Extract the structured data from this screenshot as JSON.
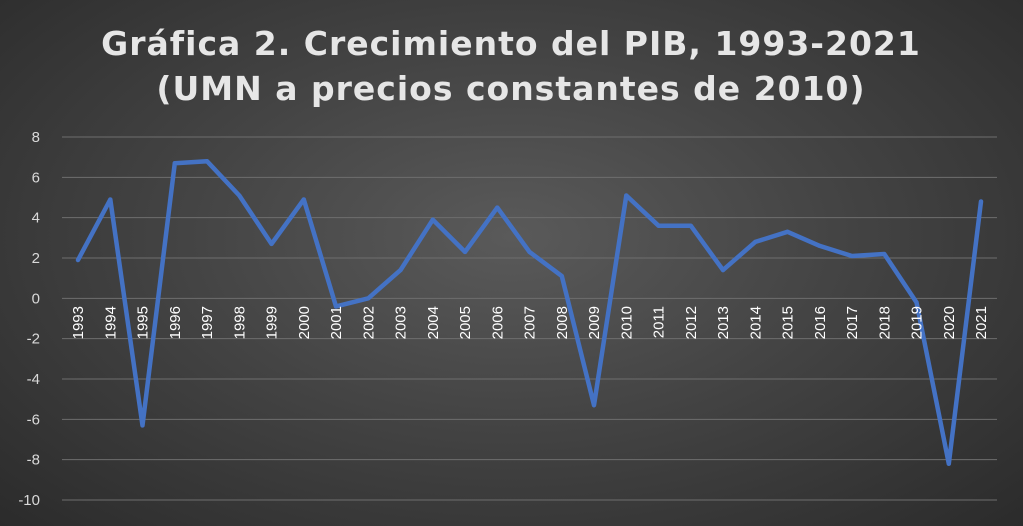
{
  "chart_data": {
    "type": "line",
    "title_lines": [
      "Gráfica 2. Crecimiento del PIB, 1993-2021",
      "(UMN a precios constantes de 2010)"
    ],
    "xlabel": "",
    "ylabel": "",
    "ylim": [
      -10,
      8
    ],
    "yticks": [
      8,
      6,
      4,
      2,
      0,
      -2,
      -4,
      -6,
      -8,
      -10
    ],
    "grid": true,
    "legend": "none",
    "categories": [
      "1993",
      "1994",
      "1995",
      "1996",
      "1997",
      "1998",
      "1999",
      "2000",
      "2001",
      "2002",
      "2003",
      "2004",
      "2005",
      "2006",
      "2007",
      "2008",
      "2009",
      "2010",
      "2011",
      "2012",
      "2013",
      "2014",
      "2015",
      "2016",
      "2017",
      "2018",
      "2019",
      "2020",
      "2021"
    ],
    "series": [
      {
        "color": "#4472C4",
        "values": [
          1.9,
          4.9,
          -6.3,
          6.7,
          6.8,
          5.1,
          2.7,
          4.9,
          -0.4,
          0.0,
          1.4,
          3.9,
          2.3,
          4.5,
          2.3,
          1.1,
          -5.3,
          5.1,
          3.6,
          3.6,
          1.4,
          2.8,
          3.3,
          2.6,
          2.1,
          2.2,
          -0.2,
          -8.2,
          4.8
        ]
      }
    ]
  }
}
